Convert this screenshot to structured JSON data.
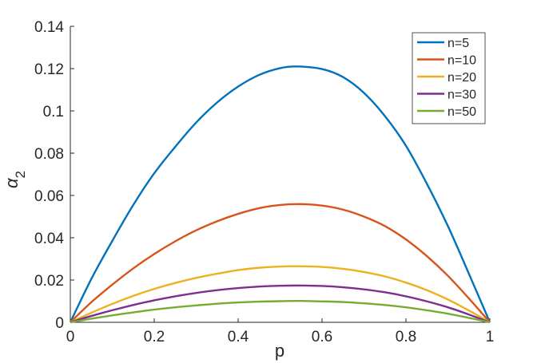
{
  "chart_data": {
    "type": "line",
    "title": "",
    "xlabel": "p",
    "ylabel": "α",
    "ylabel_subscript": "2",
    "xlim": [
      0,
      1
    ],
    "ylim": [
      0,
      0.14
    ],
    "xticks": [
      "0",
      "0.2",
      "0.4",
      "0.6",
      "0.8",
      "1"
    ],
    "yticks": [
      "0",
      "0.02",
      "0.04",
      "0.06",
      "0.08",
      "0.1",
      "0.12",
      "0.14"
    ],
    "grid": false,
    "legend_position": "top-right",
    "series": [
      {
        "name": "n=5",
        "color": "#0072BD",
        "x": [
          0,
          0.05,
          0.1,
          0.15,
          0.2,
          0.25,
          0.3,
          0.35,
          0.4,
          0.45,
          0.5,
          0.54,
          0.6,
          0.65,
          0.7,
          0.75,
          0.8,
          0.85,
          0.9,
          0.95,
          1.0
        ],
        "y": [
          0,
          0.0205,
          0.0385,
          0.0555,
          0.0705,
          0.083,
          0.0945,
          0.104,
          0.1115,
          0.117,
          0.1202,
          0.121,
          0.1198,
          0.116,
          0.1085,
          0.0975,
          0.0835,
          0.0655,
          0.0455,
          0.023,
          0
        ]
      },
      {
        "name": "n=10",
        "color": "#D95319",
        "x": [
          0,
          0.05,
          0.1,
          0.15,
          0.2,
          0.25,
          0.3,
          0.35,
          0.4,
          0.45,
          0.5,
          0.55,
          0.6,
          0.65,
          0.7,
          0.75,
          0.8,
          0.85,
          0.9,
          0.95,
          1.0
        ],
        "y": [
          0,
          0.0095,
          0.0178,
          0.0255,
          0.0323,
          0.0383,
          0.0435,
          0.0478,
          0.0513,
          0.054,
          0.0555,
          0.0559,
          0.0552,
          0.0533,
          0.05,
          0.0455,
          0.0392,
          0.0313,
          0.022,
          0.0113,
          0
        ]
      },
      {
        "name": "n=20",
        "color": "#EDB120",
        "x": [
          0,
          0.05,
          0.1,
          0.15,
          0.2,
          0.25,
          0.3,
          0.35,
          0.4,
          0.45,
          0.5,
          0.55,
          0.6,
          0.65,
          0.7,
          0.75,
          0.8,
          0.85,
          0.9,
          0.95,
          1.0
        ],
        "y": [
          0,
          0.0045,
          0.0087,
          0.0125,
          0.0158,
          0.0186,
          0.021,
          0.023,
          0.0247,
          0.0258,
          0.0264,
          0.0265,
          0.0262,
          0.0253,
          0.0238,
          0.0217,
          0.0188,
          0.0152,
          0.0108,
          0.0056,
          0
        ]
      },
      {
        "name": "n=30",
        "color": "#7E2F8E",
        "x": [
          0,
          0.05,
          0.1,
          0.15,
          0.2,
          0.25,
          0.3,
          0.35,
          0.4,
          0.45,
          0.5,
          0.55,
          0.6,
          0.65,
          0.7,
          0.75,
          0.8,
          0.85,
          0.9,
          0.95,
          1.0
        ],
        "y": [
          0,
          0.003,
          0.0057,
          0.0082,
          0.0104,
          0.0123,
          0.0139,
          0.0152,
          0.0162,
          0.0169,
          0.0173,
          0.0174,
          0.0172,
          0.0166,
          0.0156,
          0.0142,
          0.0123,
          0.0099,
          0.0071,
          0.0037,
          0
        ]
      },
      {
        "name": "n=50",
        "color": "#77AC30",
        "x": [
          0,
          0.05,
          0.1,
          0.15,
          0.2,
          0.25,
          0.3,
          0.35,
          0.4,
          0.45,
          0.5,
          0.55,
          0.6,
          0.65,
          0.7,
          0.75,
          0.8,
          0.85,
          0.9,
          0.95,
          1.0
        ],
        "y": [
          0,
          0.0017,
          0.0033,
          0.0047,
          0.006,
          0.0071,
          0.008,
          0.0088,
          0.0094,
          0.0098,
          0.01,
          0.0101,
          0.0099,
          0.0096,
          0.009,
          0.0082,
          0.0071,
          0.0057,
          0.0041,
          0.0021,
          0
        ]
      }
    ]
  }
}
